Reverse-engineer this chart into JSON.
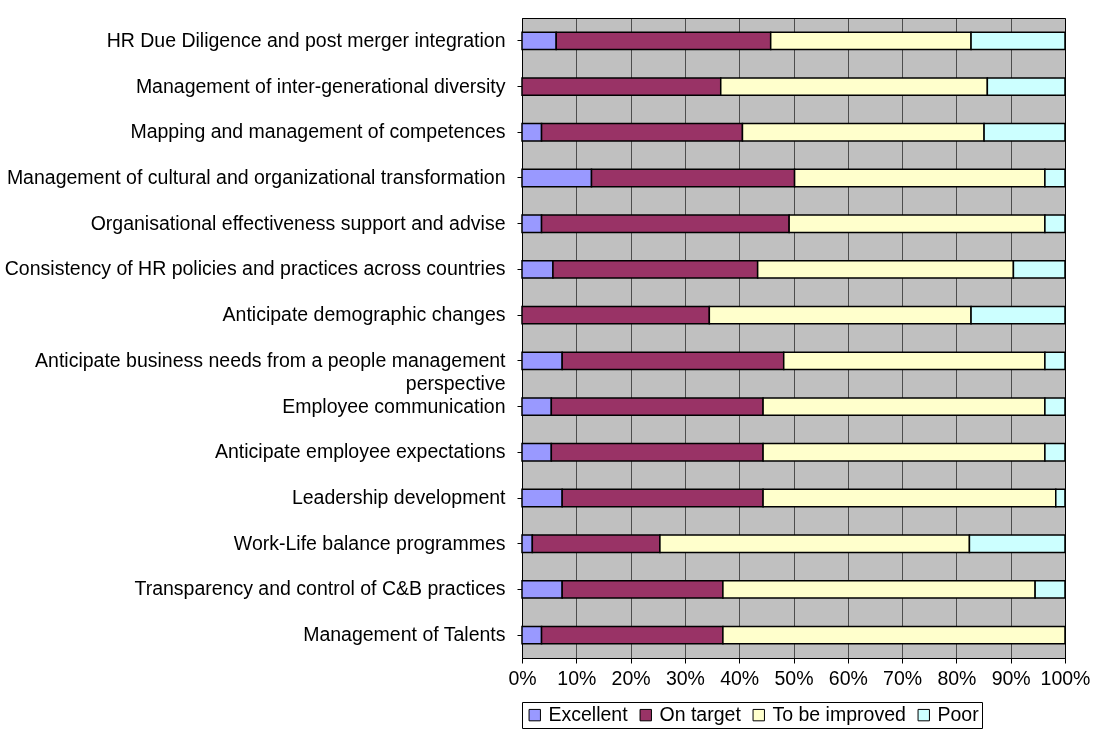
{
  "chart_data": {
    "type": "bar",
    "orientation": "horizontal",
    "stacked": true,
    "categories": [
      "HR Due Diligence and post merger integration",
      "Management of inter-generational diversity",
      "Mapping and management of competences",
      "Management of cultural and organizational transformation",
      "Organisational effectiveness support and advise",
      "Consistency of HR policies and practices across countries",
      "Anticipate demographic changes",
      "Anticipate business needs from a people management perspective",
      "Employee communication",
      "Anticipate employee expectations",
      "Leadership development",
      "Work-Life balance programmes",
      "Transparency and control of C&B practices",
      "Management of Talents"
    ],
    "series": [
      {
        "name": "Excellent",
        "color": "#9999ff",
        "values": [
          6.3,
          0,
          3.6,
          12.8,
          3.6,
          5.7,
          0,
          7.4,
          5.4,
          5.4,
          7.4,
          1.9,
          7.4,
          3.6
        ]
      },
      {
        "name": "On target",
        "color": "#993366",
        "values": [
          39.5,
          36.6,
          37.0,
          37.4,
          45.6,
          37.7,
          34.5,
          40.8,
          39.0,
          39.0,
          37.0,
          23.5,
          29.6,
          33.4
        ]
      },
      {
        "name": "To be improved",
        "color": "#ffffcc",
        "values": [
          36.9,
          49.1,
          44.5,
          46.1,
          47.1,
          47.1,
          48.2,
          48.1,
          51.9,
          51.9,
          53.9,
          57.0,
          57.5,
          63.0
        ]
      },
      {
        "name": "Poor",
        "color": "#ccffff",
        "values": [
          17.3,
          14.3,
          14.9,
          3.7,
          3.7,
          9.5,
          17.3,
          3.7,
          3.7,
          3.7,
          1.7,
          17.6,
          5.5,
          0
        ]
      }
    ],
    "xlim": [
      0,
      100
    ],
    "xticks": [
      {
        "value": 0,
        "label": "0%"
      },
      {
        "value": 10,
        "label": "10%"
      },
      {
        "value": 20,
        "label": "20%"
      },
      {
        "value": 30,
        "label": "30%"
      },
      {
        "value": 40,
        "label": "40%"
      },
      {
        "value": 50,
        "label": "50%"
      },
      {
        "value": 60,
        "label": "60%"
      },
      {
        "value": 70,
        "label": "70%"
      },
      {
        "value": 80,
        "label": "80%"
      },
      {
        "value": 90,
        "label": "90%"
      },
      {
        "value": 100,
        "label": "100%"
      }
    ],
    "grid": "x",
    "legend": "bottom"
  }
}
